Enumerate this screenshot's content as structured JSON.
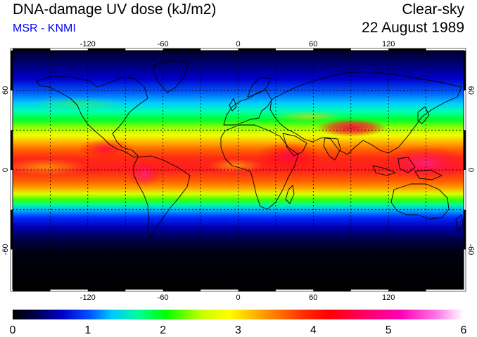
{
  "header": {
    "title": "DNA-damage UV dose (kJ/m2)",
    "subtitle": "MSR - KNMI",
    "condition": "Clear-sky",
    "date": "22 August 1989"
  },
  "map": {
    "lon_range": [
      -180,
      180
    ],
    "lat_range": [
      -90,
      90
    ],
    "lon_ticks": [
      -120,
      -60,
      0,
      60,
      120
    ],
    "lat_ticks": [
      60,
      0,
      -60
    ],
    "lon_tick_labels": [
      "-120",
      "-60",
      "0",
      "60",
      "120"
    ],
    "lat_tick_labels": [
      "60",
      "0",
      "-60"
    ]
  },
  "colorbar": {
    "min": 0,
    "max": 6,
    "tick_labels": [
      "0",
      "1",
      "2",
      "3",
      "4",
      "5",
      "6"
    ],
    "stops": [
      "#000000",
      "#00008b",
      "#0000ff",
      "#00b4ff",
      "#00ffff",
      "#00ff66",
      "#00ff00",
      "#a8ff00",
      "#ffff00",
      "#ffb400",
      "#ff6400",
      "#ff0000",
      "#ff0050",
      "#ff00a0",
      "#ff50d8",
      "#ffffff"
    ]
  }
}
